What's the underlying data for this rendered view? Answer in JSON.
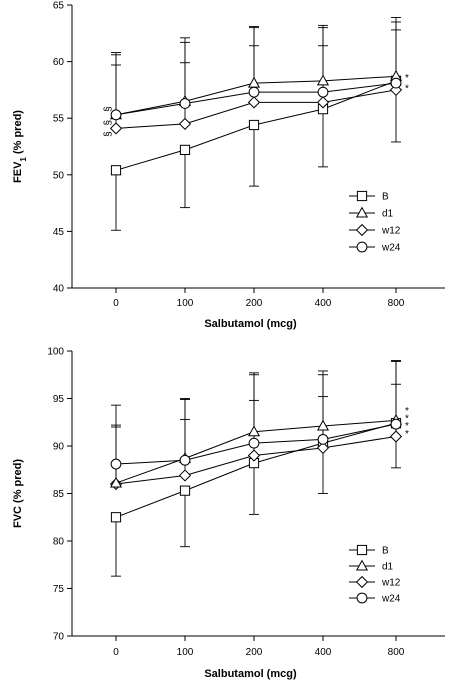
{
  "chart_data": [
    {
      "type": "line",
      "panel": "top",
      "categories": [
        "0",
        "100",
        "200",
        "400",
        "800"
      ],
      "xlabel": "Salbutamol (mcg)",
      "ylabel_parts": [
        "FEV",
        "1",
        " (% pred)"
      ],
      "ylim": [
        40,
        65
      ],
      "yticks": [
        "40",
        "45",
        "50",
        "55",
        "60",
        "65"
      ],
      "grid": false,
      "legend_position": "lower-right",
      "series": [
        {
          "name": "B",
          "marker": "square",
          "values": [
            50.4,
            52.2,
            54.4,
            55.8,
            58.3
          ],
          "err_low": [
            45.1,
            47.1,
            49.0,
            50.7,
            52.9
          ],
          "err_high": [
            null,
            null,
            null,
            null,
            null
          ]
        },
        {
          "name": "d1",
          "marker": "triangle",
          "values": [
            55.3,
            56.5,
            58.1,
            58.3,
            58.7
          ],
          "err_low": [
            null,
            null,
            null,
            null,
            null
          ],
          "err_high": [
            60.8,
            62.1,
            63.1,
            63.2,
            63.9
          ]
        },
        {
          "name": "w12",
          "marker": "diamond",
          "values": [
            54.1,
            54.5,
            56.4,
            56.4,
            57.5
          ],
          "err_low": [
            null,
            null,
            null,
            null,
            null
          ],
          "err_high": [
            59.7,
            59.9,
            61.4,
            61.4,
            62.8
          ]
        },
        {
          "name": "w24",
          "marker": "circle",
          "values": [
            55.3,
            56.3,
            57.3,
            57.3,
            58.1
          ],
          "err_low": [
            null,
            null,
            null,
            null,
            null
          ],
          "err_high": [
            60.6,
            61.7,
            63.0,
            63.0,
            63.5
          ]
        }
      ],
      "annotations": [
        {
          "text": "§",
          "x_index": 0,
          "y": 55.8
        },
        {
          "text": "§",
          "x_index": 0,
          "y": 54.6
        },
        {
          "text": "§",
          "x_index": 0,
          "y": 53.6
        },
        {
          "text": "*",
          "x_index": 4,
          "y": 58.8
        },
        {
          "text": "*",
          "x_index": 4,
          "y": 57.9
        }
      ]
    },
    {
      "type": "line",
      "panel": "bottom",
      "categories": [
        "0",
        "100",
        "200",
        "400",
        "800"
      ],
      "xlabel": "Salbutamol (mcg)",
      "ylabel_parts": [
        "FVC (% pred)"
      ],
      "ylim": [
        70,
        100
      ],
      "yticks": [
        "70",
        "75",
        "80",
        "85",
        "90",
        "95",
        "100"
      ],
      "grid": false,
      "legend_position": "lower-right",
      "series": [
        {
          "name": "B",
          "marker": "square",
          "values": [
            82.5,
            85.3,
            88.2,
            90.3,
            92.4
          ],
          "err_low": [
            76.3,
            79.4,
            82.8,
            85.0,
            87.7
          ],
          "err_high": [
            null,
            null,
            null,
            null,
            null
          ]
        },
        {
          "name": "d1",
          "marker": "triangle",
          "values": [
            86.1,
            88.7,
            91.5,
            92.1,
            92.7
          ],
          "err_low": [
            null,
            null,
            null,
            null,
            null
          ],
          "err_high": [
            92.0,
            95.0,
            97.7,
            97.9,
            99.0
          ]
        },
        {
          "name": "w12",
          "marker": "diamond",
          "values": [
            86.0,
            86.9,
            89.0,
            89.8,
            91.0
          ],
          "err_low": [
            null,
            null,
            null,
            null,
            null
          ],
          "err_high": [
            92.2,
            92.8,
            94.8,
            95.2,
            96.5
          ]
        },
        {
          "name": "w24",
          "marker": "circle",
          "values": [
            88.1,
            88.5,
            90.3,
            90.7,
            92.3
          ],
          "err_low": [
            null,
            null,
            null,
            null,
            null
          ],
          "err_high": [
            94.3,
            94.9,
            97.5,
            97.5,
            98.9
          ]
        }
      ],
      "annotations": [
        {
          "text": "*",
          "x_index": 4,
          "y": 94.0
        },
        {
          "text": "*",
          "x_index": 4,
          "y": 93.2
        },
        {
          "text": "*",
          "x_index": 4,
          "y": 92.4
        },
        {
          "text": "*",
          "x_index": 4,
          "y": 91.6
        }
      ]
    }
  ]
}
